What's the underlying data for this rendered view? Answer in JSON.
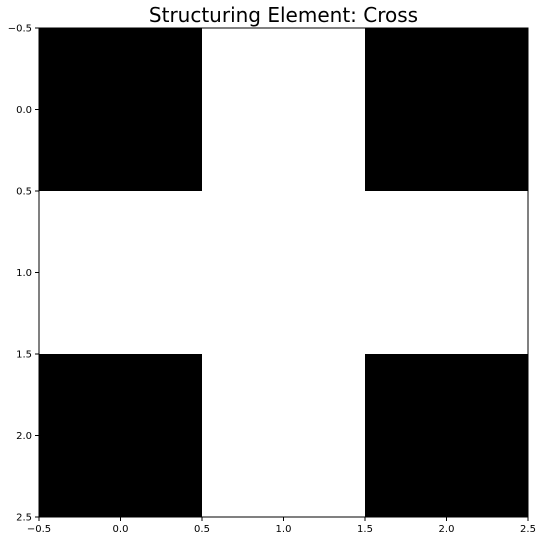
{
  "chart_data": {
    "type": "heatmap",
    "title": "Structuring Element: Cross",
    "xlabel": "",
    "ylabel": "",
    "grid": false,
    "colormap": {
      "0": "#000000",
      "1": "#ffffff"
    },
    "matrix": [
      [
        0,
        1,
        0
      ],
      [
        1,
        1,
        1
      ],
      [
        0,
        1,
        0
      ]
    ],
    "xlim": [
      -0.5,
      2.5
    ],
    "ylim": [
      2.5,
      -0.5
    ],
    "xticks": [
      -0.5,
      0.0,
      0.5,
      1.0,
      1.5,
      2.0,
      2.5
    ],
    "xtick_labels": [
      "−0.5",
      "0.0",
      "0.5",
      "1.0",
      "1.5",
      "2.0",
      "2.5"
    ],
    "yticks": [
      -0.5,
      0.0,
      0.5,
      1.0,
      1.5,
      2.0,
      2.5
    ],
    "ytick_labels": [
      "−0.5",
      "0.0",
      "0.5",
      "1.0",
      "1.5",
      "2.0",
      "2.5"
    ]
  }
}
